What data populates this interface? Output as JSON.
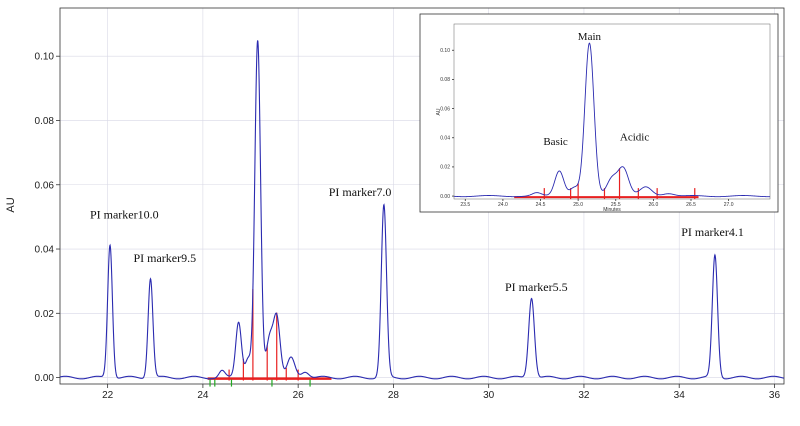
{
  "chart_data": [
    {
      "type": "line",
      "title": "",
      "xlabel": "",
      "ylabel": "AU",
      "xlim": [
        21,
        36.2
      ],
      "ylim": [
        -0.002,
        0.115
      ],
      "x_ticks": [
        "22",
        "24",
        "26",
        "28",
        "30",
        "32",
        "34",
        "36"
      ],
      "y_ticks": [
        "0.00",
        "0.02",
        "0.04",
        "0.06",
        "0.08",
        "0.10"
      ],
      "line_color": "#2b2bb0",
      "baseline": 0.0,
      "peaks": [
        {
          "x": 22.05,
          "h": 0.0415,
          "w": 0.05
        },
        {
          "x": 22.9,
          "h": 0.031,
          "w": 0.05
        },
        {
          "x": 24.4,
          "h": 0.002,
          "w": 0.06
        },
        {
          "x": 24.75,
          "h": 0.0175,
          "w": 0.06
        },
        {
          "x": 24.95,
          "h": 0.006,
          "w": 0.06
        },
        {
          "x": 25.15,
          "h": 0.1045,
          "w": 0.06
        },
        {
          "x": 25.4,
          "h": 0.012,
          "w": 0.07
        },
        {
          "x": 25.55,
          "h": 0.019,
          "w": 0.07
        },
        {
          "x": 25.85,
          "h": 0.006,
          "w": 0.08
        },
        {
          "x": 26.15,
          "h": 0.002,
          "w": 0.08
        },
        {
          "x": 27.8,
          "h": 0.0535,
          "w": 0.055
        },
        {
          "x": 30.9,
          "h": 0.025,
          "w": 0.06
        },
        {
          "x": 34.75,
          "h": 0.038,
          "w": 0.055
        }
      ],
      "annotations": [
        {
          "text": "PI marker10.0",
          "x": 22.35,
          "y": 0.0495
        },
        {
          "text": "PI marker9.5",
          "x": 23.2,
          "y": 0.036
        },
        {
          "text": "PI marker7.0",
          "x": 27.3,
          "y": 0.0565
        },
        {
          "text": "PI marker5.5",
          "x": 31.0,
          "y": 0.027
        },
        {
          "text": "PI marker4.1",
          "x": 34.7,
          "y": 0.044
        }
      ],
      "integration_marks": {
        "color": "#e82020",
        "green_color": "#22aa22",
        "baseline_range": [
          24.1,
          26.7
        ],
        "red_ticks": [
          24.55,
          24.85,
          25.05,
          25.35,
          25.55,
          25.75,
          26.0
        ],
        "green_ticks": [
          24.15,
          24.25,
          24.6,
          25.45,
          26.25
        ]
      }
    },
    {
      "type": "line",
      "title": "",
      "xlabel": "Minutes",
      "ylabel": "AU",
      "xlim": [
        23.35,
        27.55
      ],
      "ylim": [
        -0.002,
        0.118
      ],
      "x_ticks": [
        "23.5",
        "24.0",
        "24.5",
        "25.0",
        "25.5",
        "26.0",
        "26.5",
        "27.0"
      ],
      "y_ticks": [
        "0.00",
        "0.02",
        "0.04",
        "0.06",
        "0.08",
        "0.10"
      ],
      "line_color": "#2b2bb0",
      "peaks": [
        {
          "x": 24.45,
          "h": 0.002,
          "w": 0.06
        },
        {
          "x": 24.75,
          "h": 0.0175,
          "w": 0.06
        },
        {
          "x": 24.95,
          "h": 0.006,
          "w": 0.06
        },
        {
          "x": 25.15,
          "h": 0.1045,
          "w": 0.06
        },
        {
          "x": 25.45,
          "h": 0.012,
          "w": 0.07
        },
        {
          "x": 25.6,
          "h": 0.019,
          "w": 0.07
        },
        {
          "x": 25.9,
          "h": 0.006,
          "w": 0.08
        },
        {
          "x": 26.2,
          "h": 0.002,
          "w": 0.08
        }
      ],
      "annotations": [
        {
          "text": "Main",
          "x": 25.15,
          "y": 0.107
        },
        {
          "text": "Basic",
          "x": 24.7,
          "y": 0.035
        },
        {
          "text": "Acidic",
          "x": 25.75,
          "y": 0.038
        }
      ],
      "integration_marks": {
        "color": "#e82020",
        "baseline_range": [
          24.15,
          26.6
        ],
        "red_ticks": [
          24.55,
          24.9,
          25.0,
          25.35,
          25.55,
          25.8,
          26.05,
          26.55
        ]
      }
    }
  ]
}
